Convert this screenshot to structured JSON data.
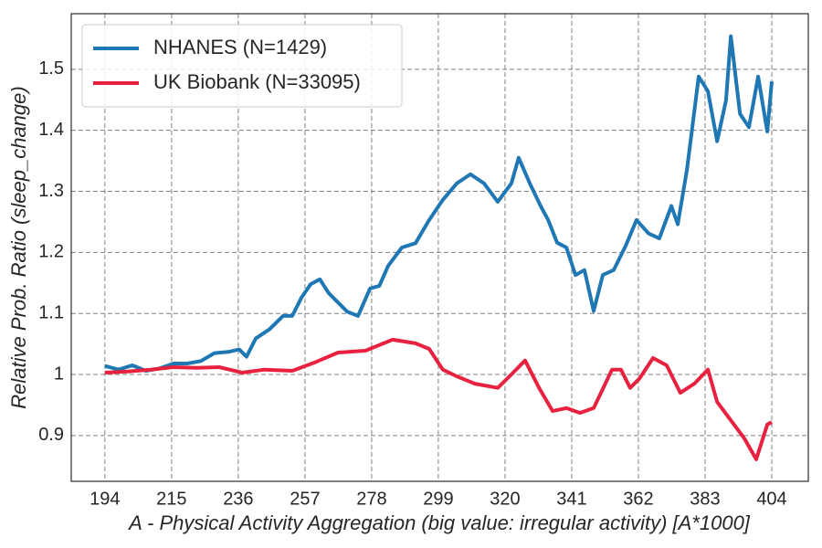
{
  "chart_data": {
    "type": "line",
    "x_label": "A - Physical Activity Aggregation (big value: irregular activity) [A*1000]",
    "y_label": "Relative Prob. Ratio (sleep_change)",
    "xlim": [
      183.4,
      415.5
    ],
    "ylim": [
      0.825,
      1.591
    ],
    "xticks": [
      194,
      215,
      236,
      257,
      278,
      299,
      320,
      341,
      362,
      383,
      404
    ],
    "yticks": [
      0.9,
      1.0,
      1.1,
      1.2,
      1.3,
      1.4,
      1.5
    ],
    "grid": true,
    "legend": "upper left",
    "series": [
      {
        "name": "NHANES (N=1429)",
        "color": "#1f77b4",
        "x": [
          194.0,
          198.3,
          202.6,
          206.9,
          211.3,
          215.6,
          219.9,
          224.2,
          228.5,
          232.8,
          236.3,
          238.6,
          241.5,
          245.8,
          250.1,
          253.0,
          255.9,
          258.8,
          261.7,
          264.5,
          267.4,
          270.3,
          273.7,
          277.5,
          280.4,
          283.2,
          287.5,
          291.8,
          296.1,
          300.4,
          304.8,
          309.1,
          313.4,
          317.7,
          322.0,
          324.3,
          327.8,
          331.2,
          333.5,
          336.4,
          339.3,
          342.2,
          345.0,
          347.9,
          350.8,
          354.2,
          358.0,
          361.4,
          365.2,
          368.6,
          372.4,
          374.4,
          377.3,
          381.0,
          383.9,
          386.8,
          389.6,
          391.1,
          394.0,
          396.8,
          399.7,
          402.6,
          404.0
        ],
        "values": [
          1.014,
          1.008,
          1.015,
          1.006,
          1.01,
          1.018,
          1.018,
          1.022,
          1.035,
          1.037,
          1.041,
          1.029,
          1.059,
          1.074,
          1.096,
          1.096,
          1.126,
          1.148,
          1.156,
          1.133,
          1.118,
          1.103,
          1.096,
          1.141,
          1.145,
          1.178,
          1.208,
          1.215,
          1.253,
          1.286,
          1.313,
          1.328,
          1.313,
          1.283,
          1.313,
          1.355,
          1.313,
          1.276,
          1.254,
          1.216,
          1.208,
          1.163,
          1.171,
          1.104,
          1.163,
          1.171,
          1.211,
          1.253,
          1.231,
          1.223,
          1.276,
          1.246,
          1.336,
          1.488,
          1.464,
          1.382,
          1.449,
          1.554,
          1.427,
          1.405,
          1.488,
          1.398,
          1.48
        ]
      },
      {
        "name": "UK Biobank (N=33095)",
        "color": "#e8213f",
        "x": [
          194.0,
          201.2,
          208.4,
          215.6,
          222.8,
          230.0,
          237.2,
          244.3,
          253.0,
          260.2,
          267.4,
          276.0,
          284.6,
          291.8,
          296.1,
          300.4,
          304.8,
          310.5,
          317.7,
          322.0,
          326.3,
          330.7,
          335.0,
          339.3,
          343.6,
          347.9,
          353.7,
          356.5,
          359.4,
          362.3,
          366.6,
          370.9,
          375.2,
          379.6,
          383.9,
          386.8,
          391.1,
          395.4,
          399.1,
          402.6,
          404.0
        ],
        "values": [
          1.003,
          1.005,
          1.008,
          1.012,
          1.011,
          1.012,
          1.003,
          1.008,
          1.006,
          1.02,
          1.036,
          1.039,
          1.057,
          1.051,
          1.042,
          1.008,
          0.997,
          0.985,
          0.978,
          1.0,
          1.023,
          0.978,
          0.94,
          0.945,
          0.937,
          0.945,
          1.008,
          1.008,
          0.978,
          0.993,
          1.027,
          1.015,
          0.97,
          0.985,
          1.008,
          0.955,
          0.925,
          0.895,
          0.861,
          0.918,
          0.922
        ]
      }
    ]
  }
}
